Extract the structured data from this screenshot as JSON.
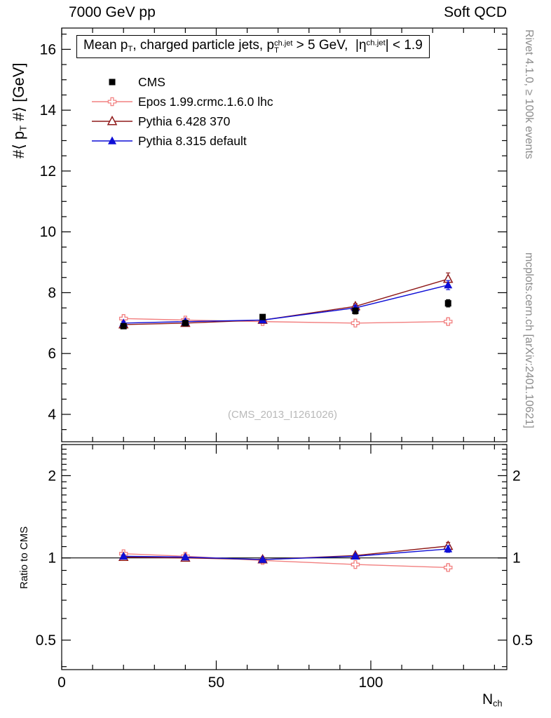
{
  "header": {
    "left": "7000 GeV pp",
    "right": "Soft QCD"
  },
  "side_notes": {
    "top_right": "Rivet 4.1.0, ≥ 100k events",
    "bottom_right": "mcplots.cern.ch [arXiv:2401.10621]"
  },
  "watermark": "(CMS_2013_I1261026)",
  "axes": {
    "y_main_label": {
      "pre": "#⟨ p",
      "sub": "T",
      "post": " #⟩ [GeV]"
    },
    "y_ratio_label": "Ratio to CMS",
    "x_label": {
      "main": "N",
      "sub": "ch"
    }
  },
  "title": {
    "t1": "Mean p",
    "t1_sub": "T",
    "t2": ", charged particle jets, p",
    "t2_sup": "ch.jet",
    "t2_sub": "T",
    "t3": " > 5 GeV,  |η",
    "t3_sup": "ch.jet",
    "t4": "| < 1.9"
  },
  "legend": [
    {
      "label": "CMS",
      "marker": "square",
      "color": "#000000",
      "line": false
    },
    {
      "label": "Epos 1.99.crmc.1.6.0 lhc",
      "marker": "cross",
      "color": "#f28080",
      "line": true
    },
    {
      "label": "Pythia 6.428 370",
      "marker": "triangle-open",
      "color": "#8f1a1a",
      "line": true
    },
    {
      "label": "Pythia 8.315 default",
      "marker": "triangle-filled",
      "color": "#0f0fd6",
      "line": true
    }
  ],
  "chart_data": [
    {
      "type": "line",
      "panel": "main",
      "title": "Mean p_T, charged particle jets, p_T^{ch.jet} > 5 GeV, |eta^{ch.jet}| < 1.9",
      "xlabel": "N_ch",
      "ylabel": "<p_T> [GeV]",
      "xlim": [
        0,
        144
      ],
      "ylim": [
        3.1,
        16.7
      ],
      "xticks": [
        0,
        50,
        100
      ],
      "xminor_step": 10,
      "yticks": [
        4,
        6,
        8,
        10,
        12,
        14,
        16
      ],
      "yminor_step": 0.5,
      "grid": false,
      "legend_position": "upper-left",
      "x": [
        20,
        40,
        65,
        95,
        125
      ],
      "series": [
        {
          "name": "Epos 1.99.crmc.1.6.0 lhc",
          "color": "#f28080",
          "marker": "cross",
          "line": true,
          "values": [
            7.15,
            7.1,
            7.05,
            7.0,
            7.05
          ],
          "errors": [
            0.05,
            0.05,
            0.05,
            0.06,
            0.1
          ]
        },
        {
          "name": "Pythia 6.428 370",
          "color": "#8f1a1a",
          "marker": "triangle-open",
          "line": true,
          "values": [
            6.95,
            7.0,
            7.1,
            7.55,
            8.45
          ],
          "errors": [
            0.05,
            0.05,
            0.05,
            0.09,
            0.2
          ]
        },
        {
          "name": "Pythia 8.315 default",
          "color": "#0f0fd6",
          "marker": "triangle-filled",
          "line": true,
          "values": [
            7.0,
            7.05,
            7.1,
            7.5,
            8.25
          ],
          "errors": [
            0.05,
            0.05,
            0.05,
            0.08,
            0.15
          ]
        },
        {
          "name": "CMS",
          "color": "#000000",
          "marker": "square",
          "line": false,
          "values": [
            6.9,
            7.0,
            7.2,
            7.4,
            7.65
          ],
          "errors": [
            0.08,
            0.08,
            0.08,
            0.1,
            0.12
          ]
        }
      ]
    },
    {
      "type": "line",
      "panel": "ratio",
      "ylabel": "Ratio to CMS",
      "yscale": "log",
      "xlim": [
        0,
        144
      ],
      "ylim": [
        0.39,
        2.6
      ],
      "xticks": [
        0,
        50,
        100
      ],
      "xminor_step": 10,
      "yticks": [
        0.5,
        1,
        2
      ],
      "reference_line": 1,
      "grid": false,
      "x": [
        20,
        40,
        65,
        95,
        125
      ],
      "series": [
        {
          "name": "Epos 1.99.crmc.1.6.0 lhc",
          "color": "#f28080",
          "marker": "cross",
          "line": true,
          "values": [
            1.036,
            1.014,
            0.979,
            0.946,
            0.922
          ],
          "errors": [
            0.012,
            0.01,
            0.008,
            0.012,
            0.02
          ]
        },
        {
          "name": "Pythia 6.428 370",
          "color": "#8f1a1a",
          "marker": "triangle-open",
          "line": true,
          "values": [
            1.007,
            1.0,
            0.986,
            1.02,
            1.105
          ],
          "errors": [
            0.012,
            0.01,
            0.008,
            0.015,
            0.035
          ]
        },
        {
          "name": "Pythia 8.315 default",
          "color": "#0f0fd6",
          "marker": "triangle-filled",
          "line": true,
          "values": [
            1.014,
            1.007,
            0.986,
            1.014,
            1.078
          ],
          "errors": [
            0.012,
            0.01,
            0.008,
            0.014,
            0.03
          ]
        }
      ]
    }
  ]
}
